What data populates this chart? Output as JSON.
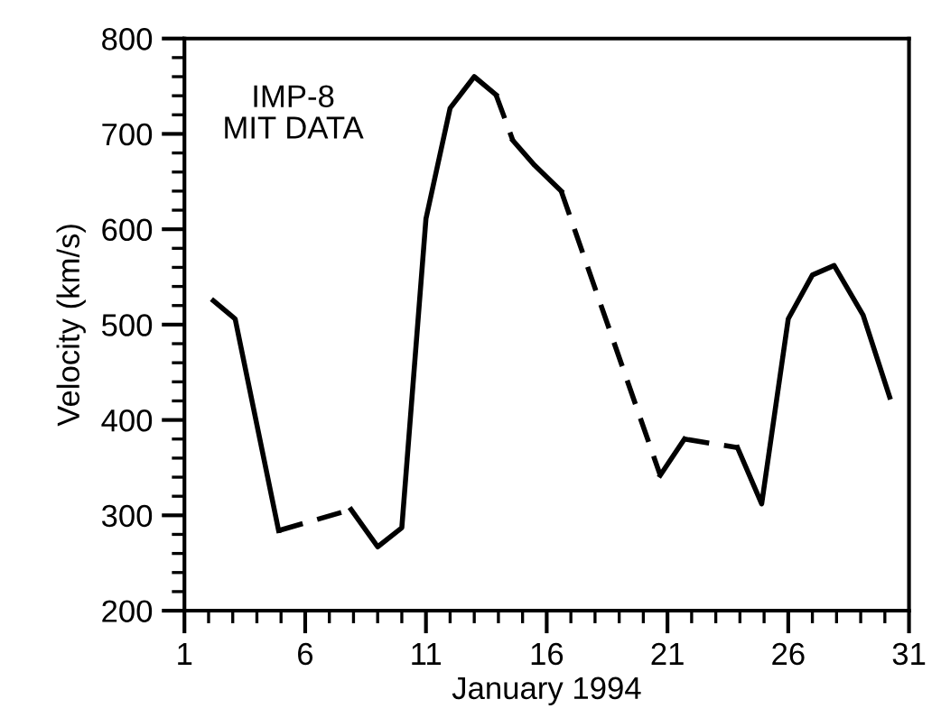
{
  "chart_data": {
    "type": "line",
    "xlabel": "January 1994",
    "ylabel": "Velocity (km/s)",
    "annotations": [
      "IMP-8\nMIT DATA"
    ],
    "xlim": [
      1,
      31
    ],
    "ylim": [
      200,
      800
    ],
    "xticks": [
      1,
      {
        "value": 2,
        "label": null
      },
      {
        "value": 3,
        "label": null
      },
      {
        "value": 4,
        "label": null
      },
      {
        "value": 5,
        "label": null
      },
      6,
      {
        "value": 7,
        "label": null
      },
      {
        "value": 8,
        "label": null
      },
      {
        "value": 9,
        "label": null
      },
      {
        "value": 10,
        "label": null
      },
      11,
      {
        "value": 12,
        "label": null
      },
      {
        "value": 13,
        "label": null
      },
      {
        "value": 14,
        "label": null
      },
      {
        "value": 15,
        "label": null
      },
      16,
      {
        "value": 17,
        "label": null
      },
      {
        "value": 18,
        "label": null
      },
      {
        "value": 19,
        "label": null
      },
      {
        "value": 20,
        "label": null
      },
      21,
      {
        "value": 22,
        "label": null
      },
      {
        "value": 23,
        "label": null
      },
      {
        "value": 24,
        "label": null
      },
      {
        "value": 25,
        "label": null
      },
      26,
      {
        "value": 27,
        "label": null
      },
      {
        "value": 28,
        "label": null
      },
      {
        "value": 29,
        "label": null
      },
      {
        "value": 30,
        "label": null
      },
      31
    ],
    "yticks": [
      200,
      {
        "value": 220,
        "label": null
      },
      {
        "value": 240,
        "label": null
      },
      {
        "value": 260,
        "label": null
      },
      {
        "value": 280,
        "label": null
      },
      300,
      {
        "value": 320,
        "label": null
      },
      {
        "value": 340,
        "label": null
      },
      {
        "value": 360,
        "label": null
      },
      {
        "value": 380,
        "label": null
      },
      400,
      {
        "value": 420,
        "label": null
      },
      {
        "value": 440,
        "label": null
      },
      {
        "value": 460,
        "label": null
      },
      {
        "value": 480,
        "label": null
      },
      500,
      {
        "value": 520,
        "label": null
      },
      {
        "value": 540,
        "label": null
      },
      {
        "value": 560,
        "label": null
      },
      {
        "value": 580,
        "label": null
      },
      600,
      {
        "value": 620,
        "label": null
      },
      {
        "value": 640,
        "label": null
      },
      {
        "value": 660,
        "label": null
      },
      {
        "value": 680,
        "label": null
      },
      700,
      {
        "value": 720,
        "label": null
      },
      {
        "value": 740,
        "label": null
      },
      {
        "value": 760,
        "label": null
      },
      {
        "value": 780,
        "label": null
      },
      800
    ],
    "grid": false,
    "legend": false,
    "marker": "none",
    "series": [
      {
        "color": "#000000",
        "line_style": "solid",
        "x": [
          2.2,
          3.1,
          4.9
        ],
        "values": [
          525,
          506,
          284
        ]
      },
      {
        "color": "#000000",
        "line_style": "dashed",
        "x": [
          4.9,
          7.9
        ],
        "values": [
          284,
          306
        ]
      },
      {
        "color": "#000000",
        "line_style": "solid",
        "x": [
          7.9,
          9.0,
          10.0,
          11.0,
          12.0,
          13.0,
          13.9
        ],
        "values": [
          306,
          267,
          287,
          611,
          727,
          760,
          741
        ]
      },
      {
        "color": "#000000",
        "line_style": "dashed",
        "x": [
          13.9,
          14.6
        ],
        "values": [
          741,
          693
        ]
      },
      {
        "color": "#000000",
        "line_style": "solid",
        "x": [
          14.6,
          15.5,
          16.6
        ],
        "values": [
          693,
          667,
          640
        ]
      },
      {
        "color": "#000000",
        "line_style": "dashed",
        "x": [
          16.6,
          20.7
        ],
        "values": [
          640,
          342
        ]
      },
      {
        "color": "#000000",
        "line_style": "solid",
        "x": [
          20.7,
          21.7
        ],
        "values": [
          342,
          380
        ]
      },
      {
        "color": "#000000",
        "line_style": "dashed",
        "x": [
          21.7,
          23.9
        ],
        "values": [
          380,
          371
        ]
      },
      {
        "color": "#000000",
        "line_style": "solid",
        "x": [
          23.9,
          24.9,
          26.0,
          27.0,
          27.9,
          29.1,
          30.2
        ],
        "values": [
          371,
          312,
          506,
          552,
          562,
          510,
          424
        ]
      }
    ]
  }
}
